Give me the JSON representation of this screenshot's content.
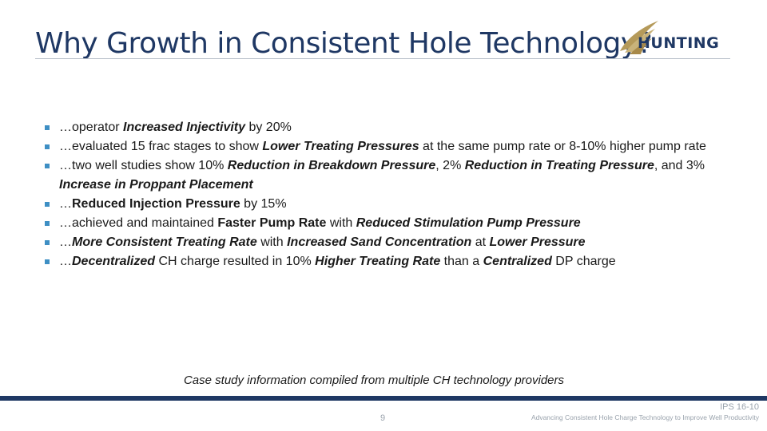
{
  "slide": {
    "title": "Why Growth in Consistent Hole Technology?",
    "logo_text": "HUNTING",
    "bullets": [
      [
        {
          "t": "…operator ",
          "s": ""
        },
        {
          "t": "Increased Injectivity",
          "s": "bi"
        },
        {
          "t": " by 20%",
          "s": ""
        }
      ],
      [
        {
          "t": "…evaluated 15 frac stages to show ",
          "s": ""
        },
        {
          "t": "Lower Treating Pressures",
          "s": "bi"
        },
        {
          "t": " at the same pump rate or 8-10% higher pump rate",
          "s": ""
        }
      ],
      [
        {
          "t": "…two well studies show 10% ",
          "s": ""
        },
        {
          "t": "Reduction in Breakdown Pressure",
          "s": "bi"
        },
        {
          "t": ", 2% ",
          "s": ""
        },
        {
          "t": "Reduction in Treating Pressure",
          "s": "bi"
        },
        {
          "t": ", and 3% ",
          "s": ""
        },
        {
          "t": "Increase in Proppant Placement",
          "s": "bi"
        }
      ],
      [
        {
          "t": "…",
          "s": ""
        },
        {
          "t": "Reduced Injection Pressure",
          "s": "b"
        },
        {
          "t": " by 15%",
          "s": ""
        }
      ],
      [
        {
          "t": "…achieved and maintained ",
          "s": ""
        },
        {
          "t": "Faster Pump Rate",
          "s": "b"
        },
        {
          "t": " with ",
          "s": ""
        },
        {
          "t": "Reduced Stimulation Pump Pressure",
          "s": "bi"
        }
      ],
      [
        {
          "t": "…",
          "s": ""
        },
        {
          "t": "More Consistent Treating Rate",
          "s": "bi"
        },
        {
          "t": " with ",
          "s": ""
        },
        {
          "t": "Increased Sand Concentration",
          "s": "bi"
        },
        {
          "t": " at ",
          "s": ""
        },
        {
          "t": "Lower Pressure",
          "s": "bi"
        }
      ],
      [
        {
          "t": "…",
          "s": ""
        },
        {
          "t": "Decentralized",
          "s": "bi"
        },
        {
          "t": " CH charge resulted in 10% ",
          "s": ""
        },
        {
          "t": "Higher Treating Rate",
          "s": "bi"
        },
        {
          "t": " than a ",
          "s": ""
        },
        {
          "t": "Centralized",
          "s": "bi"
        },
        {
          "t": " DP charge",
          "s": ""
        }
      ]
    ],
    "caption": "Case study information compiled from multiple CH technology providers"
  },
  "footer": {
    "page_number": "9",
    "code": "IPS 16-10",
    "text": "Advancing Consistent Hole Charge Technology to Improve Well Productivity"
  },
  "colors": {
    "title": "#1f3864",
    "bullet_marker": "#3e8fc4",
    "footer_bar": "#1f3864",
    "logo_wing": "#b59a5a"
  }
}
